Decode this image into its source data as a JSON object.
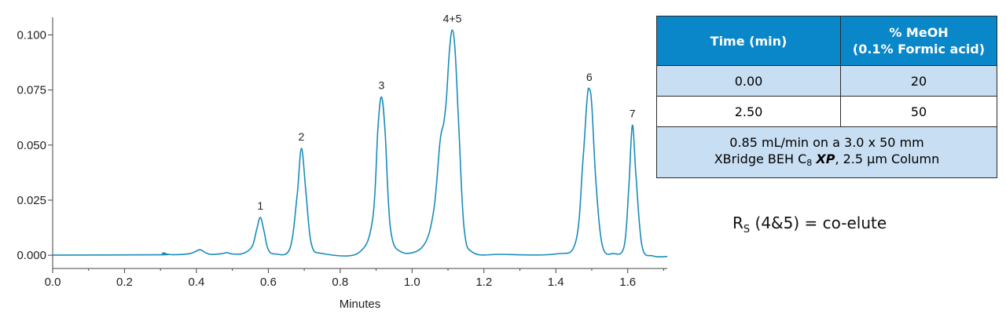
{
  "chart_data": {
    "type": "line",
    "xlabel": "Minutes",
    "ylabel": "",
    "xlim": [
      0.0,
      1.71
    ],
    "ylim": [
      -0.006,
      0.108
    ],
    "x_ticks": [
      0.0,
      0.2,
      0.4,
      0.6,
      0.8,
      1.0,
      1.2,
      1.4,
      1.6
    ],
    "x_tick_labels": [
      "0.0",
      "0.2",
      "0.4",
      "0.6",
      "0.8",
      "1.0",
      "1.2",
      "1.4",
      "1.6"
    ],
    "y_ticks": [
      0.0,
      0.025,
      0.05,
      0.075,
      0.1
    ],
    "y_tick_labels": [
      "0.000",
      "0.025",
      "0.050",
      "0.075",
      "0.100"
    ],
    "line_color": "#1a8cba",
    "grid": false,
    "peaks": [
      {
        "label": "1",
        "x": 0.578,
        "y": 0.0172
      },
      {
        "label": "2",
        "x": 0.692,
        "y": 0.0485
      },
      {
        "label": "3",
        "x": 0.915,
        "y": 0.0718
      },
      {
        "label": "4+5",
        "x": 1.112,
        "y": 0.1022
      },
      {
        "label": "6",
        "x": 1.493,
        "y": 0.0755
      },
      {
        "label": "7",
        "x": 1.613,
        "y": 0.059
      }
    ],
    "series": [
      {
        "x": [
          0.0,
          0.3,
          0.305,
          0.31,
          0.32,
          0.35,
          0.38,
          0.395,
          0.41,
          0.425,
          0.44,
          0.47,
          0.485,
          0.5,
          0.53,
          0.555,
          0.568,
          0.578,
          0.588,
          0.6,
          0.62,
          0.66,
          0.68,
          0.692,
          0.705,
          0.72,
          0.75,
          0.85,
          0.89,
          0.905,
          0.915,
          0.925,
          0.94,
          0.97,
          1.03,
          1.06,
          1.078,
          1.088,
          1.095,
          1.104,
          1.112,
          1.12,
          1.13,
          1.145,
          1.17,
          1.25,
          1.4,
          1.455,
          1.475,
          1.487,
          1.493,
          1.5,
          1.512,
          1.53,
          1.56,
          1.59,
          1.603,
          1.613,
          1.623,
          1.64,
          1.67,
          1.71
        ],
        "y": [
          0.0001,
          0.0002,
          0.0008,
          0.0011,
          0.0004,
          0.0003,
          0.0007,
          0.0015,
          0.0025,
          0.0012,
          0.0004,
          0.0007,
          0.0012,
          0.0006,
          0.0008,
          0.004,
          0.012,
          0.0172,
          0.011,
          0.0025,
          0.0006,
          0.003,
          0.027,
          0.0485,
          0.028,
          0.005,
          0.0008,
          0.001,
          0.016,
          0.058,
          0.0718,
          0.056,
          0.012,
          0.0015,
          0.004,
          0.02,
          0.052,
          0.06,
          0.07,
          0.093,
          0.1022,
          0.092,
          0.058,
          0.012,
          0.0012,
          0.0004,
          0.0006,
          0.006,
          0.042,
          0.071,
          0.0755,
          0.068,
          0.032,
          0.004,
          0.0008,
          0.004,
          0.031,
          0.059,
          0.036,
          0.004,
          -0.0003,
          -0.0006
        ]
      }
    ]
  },
  "gradient_table": {
    "headers": {
      "time": "Time (min)",
      "meoh_line1": "% MeOH",
      "meoh_line2": "(0.1% Formic acid)"
    },
    "rows": [
      {
        "time": "0.00",
        "meoh": "20"
      },
      {
        "time": "2.50",
        "meoh": "50"
      }
    ],
    "note": {
      "line1": "0.85 mL/min on a 3.0 x 50 mm",
      "line2_prefix": "XBridge BEH C",
      "line2_sub": "8",
      "line2_em": "XP",
      "line2_suffix": ", 2.5 µm Column"
    }
  },
  "annotation": {
    "rs_main": "R",
    "rs_sub": "S",
    "rs_text": " (4&5) = co-elute"
  }
}
